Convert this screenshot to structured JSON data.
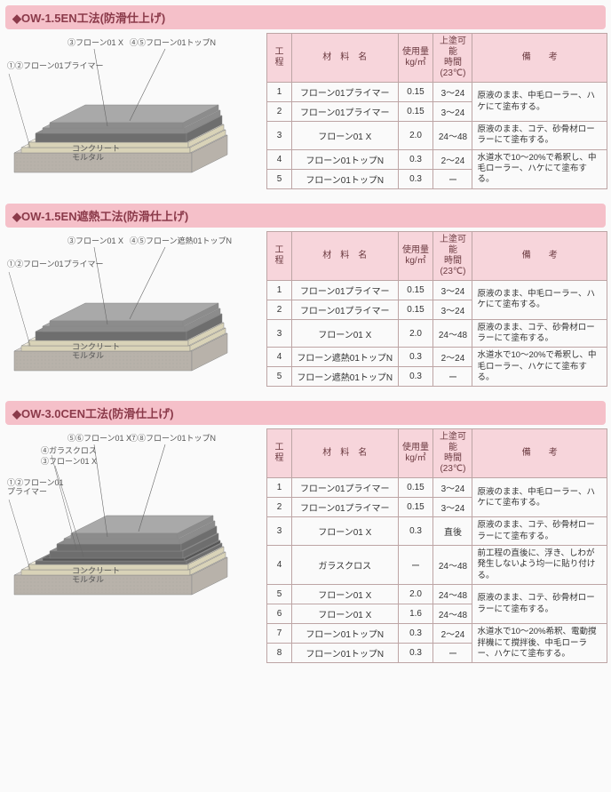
{
  "colors": {
    "header_bg": "#f5c0c9",
    "header_fg": "#8b3a4a",
    "th_bg": "#f7d5db",
    "border": "#bda5a5",
    "concrete": "#d7d2cc",
    "concrete_side": "#b8b2aa",
    "primer": "#f3eedd",
    "primer_side": "#d9d3b8",
    "mid": "#8b8b8b",
    "mid_side": "#6e6e6e",
    "top": "#a9a9a9",
    "top_side": "#8c8c8c",
    "cloth": "#444"
  },
  "table_headers": {
    "step": "工 程",
    "material": "材　料　名",
    "qty": "使用量\nkg/㎡",
    "time": "上塗可能\n時間\n(23℃)",
    "remarks": "備　　考"
  },
  "base_label": "コンクリート\nモルタル",
  "sections": [
    {
      "title": "◆OW-1.5EN工法(防滑仕上げ)",
      "diagram": {
        "top_layers": [
          {
            "leader": "③フローン01 X"
          },
          {
            "leader": "④⑤フローン01トップN"
          }
        ],
        "side_label": "①②フローン01プライマー",
        "has_cloth": false
      },
      "rows": [
        {
          "step": "1",
          "material": "フローン01プライマー",
          "qty": "0.15",
          "time": "3～24",
          "remarks": "原液のまま、中毛ローラー、ハケにて塗布する。",
          "rowspan_remarks": 2
        },
        {
          "step": "2",
          "material": "フローン01プライマー",
          "qty": "0.15",
          "time": "3～24"
        },
        {
          "step": "3",
          "material": "フローン01 X",
          "qty": "2.0",
          "time": "24～48",
          "remarks": "原液のまま、コテ、砂骨材ローラーにて塗布する。"
        },
        {
          "step": "4",
          "material": "フローン01トップN",
          "qty": "0.3",
          "time": "2～24",
          "remarks": "水道水で10～20%で希釈し、中毛ローラー、ハケにて塗布する。",
          "rowspan_remarks": 2
        },
        {
          "step": "5",
          "material": "フローン01トップN",
          "qty": "0.3",
          "time": "ー"
        }
      ]
    },
    {
      "title": "◆OW-1.5EN遮熱工法(防滑仕上げ)",
      "diagram": {
        "top_layers": [
          {
            "leader": "③フローン01 X"
          },
          {
            "leader": "④⑤フローン遮熱01トップN"
          }
        ],
        "side_label": "①②フローン01プライマー",
        "has_cloth": false
      },
      "rows": [
        {
          "step": "1",
          "material": "フローン01プライマー",
          "qty": "0.15",
          "time": "3～24",
          "remarks": "原液のまま、中毛ローラー、ハケにて塗布する。",
          "rowspan_remarks": 2
        },
        {
          "step": "2",
          "material": "フローン01プライマー",
          "qty": "0.15",
          "time": "3～24"
        },
        {
          "step": "3",
          "material": "フローン01 X",
          "qty": "2.0",
          "time": "24～48",
          "remarks": "原液のまま、コテ、砂骨材ローラーにて塗布する。"
        },
        {
          "step": "4",
          "material": "フローン遮熱01トップN",
          "qty": "0.3",
          "time": "2～24",
          "remarks": "水道水で10～20%で希釈し、中毛ローラー、ハケにて塗布する。",
          "rowspan_remarks": 2
        },
        {
          "step": "5",
          "material": "フローン遮熱01トップN",
          "qty": "0.3",
          "time": "ー"
        }
      ]
    },
    {
      "title": "◆OW-3.0CEN工法(防滑仕上げ)",
      "diagram": {
        "top_layers": [
          {
            "leader": "⑤⑥フローン01 X"
          },
          {
            "leader": "⑦⑧フローン01トップN"
          }
        ],
        "extra_labels": [
          "④ガラスクロス",
          "③フローン01 X"
        ],
        "side_label": "①②フローン01\nプライマー",
        "has_cloth": true
      },
      "rows": [
        {
          "step": "1",
          "material": "フローン01プライマー",
          "qty": "0.15",
          "time": "3～24",
          "remarks": "原液のまま、中毛ローラー、ハケにて塗布する。",
          "rowspan_remarks": 2
        },
        {
          "step": "2",
          "material": "フローン01プライマー",
          "qty": "0.15",
          "time": "3～24"
        },
        {
          "step": "3",
          "material": "フローン01 X",
          "qty": "0.3",
          "time": "直後",
          "remarks": "原液のまま、コテ、砂骨材ローラーにて塗布する。"
        },
        {
          "step": "4",
          "material": "ガラスクロス",
          "qty": "ー",
          "time": "24～48",
          "remarks": "前工程の直後に、浮き、しわが発生しないよう均一に貼り付ける。"
        },
        {
          "step": "5",
          "material": "フローン01 X",
          "qty": "2.0",
          "time": "24～48",
          "remarks": "原液のまま、コテ、砂骨材ローラーにて塗布する。",
          "rowspan_remarks": 2
        },
        {
          "step": "6",
          "material": "フローン01 X",
          "qty": "1.6",
          "time": "24～48"
        },
        {
          "step": "7",
          "material": "フローン01トップN",
          "qty": "0.3",
          "time": "2～24",
          "remarks": "水道水で10～20%希釈、電動撹拌機にて撹拌後、中毛ローラー、ハケにて塗布する。",
          "rowspan_remarks": 2
        },
        {
          "step": "8",
          "material": "フローン01トップN",
          "qty": "0.3",
          "time": "ー"
        }
      ]
    }
  ]
}
